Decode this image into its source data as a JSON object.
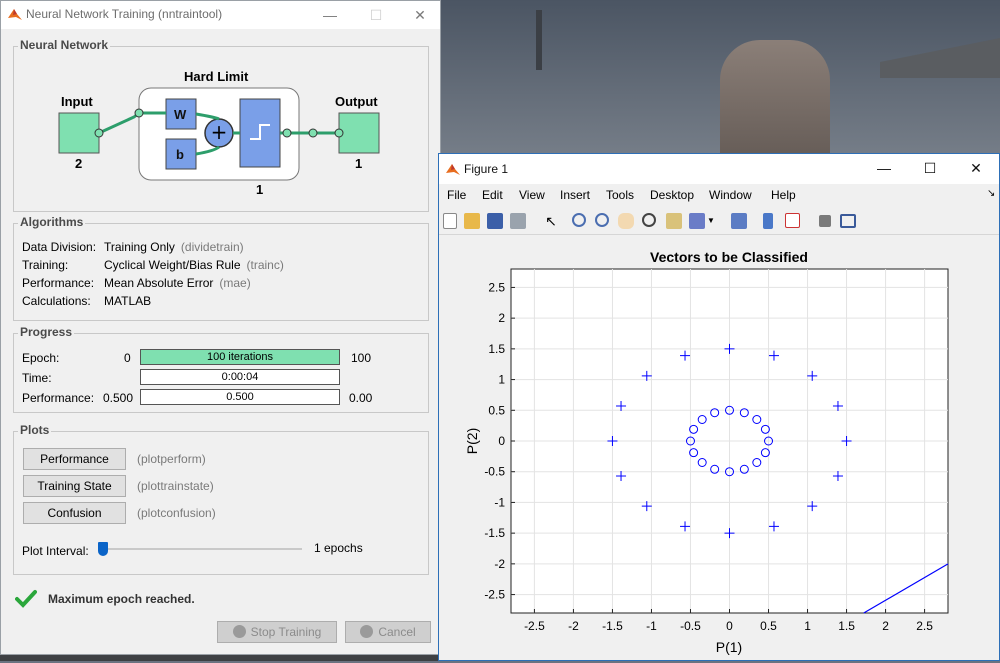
{
  "nntraintool": {
    "title": "Neural Network Training (nntraintool)",
    "network": {
      "group_title": "Neural Network",
      "layer_name": "Hard Limit",
      "input_label": "Input",
      "input_size": "2",
      "output_label": "Output",
      "output_size": "1",
      "weight_label": "W",
      "bias_label": "b",
      "layer_size": "1"
    },
    "algorithms": {
      "group_title": "Algorithms",
      "rows": [
        {
          "key": "Data Division:",
          "value": "Training Only",
          "code": "(dividetrain)"
        },
        {
          "key": "Training:",
          "value": "Cyclical Weight/Bias Rule",
          "code": "(trainc)"
        },
        {
          "key": "Performance:",
          "value": "Mean Absolute Error",
          "code": "(mae)"
        },
        {
          "key": "Calculations:",
          "value": "MATLAB",
          "code": ""
        }
      ]
    },
    "progress": {
      "group_title": "Progress",
      "epoch": {
        "label": "Epoch:",
        "min": "0",
        "text": "100 iterations",
        "max": "100",
        "fill": 1.0
      },
      "time": {
        "label": "Time:",
        "text": "0:00:04"
      },
      "performance": {
        "label": "Performance:",
        "min": "0.500",
        "text": "0.500",
        "max": "0.00"
      }
    },
    "plots": {
      "group_title": "Plots",
      "buttons": [
        {
          "label": "Performance",
          "fn": "(plotperform)"
        },
        {
          "label": "Training State",
          "fn": "(plottrainstate)"
        },
        {
          "label": "Confusion",
          "fn": "(plotconfusion)"
        }
      ],
      "interval_label": "Plot Interval:",
      "interval_value": "1 epochs"
    },
    "status": "Maximum epoch reached.",
    "stop_label": "Stop Training",
    "cancel_label": "Cancel"
  },
  "figure": {
    "title": "Figure 1",
    "menu": [
      "File",
      "Edit",
      "View",
      "Insert",
      "Tools",
      "Desktop",
      "Window",
      "Help"
    ]
  },
  "chart_data": {
    "type": "scatter",
    "title": "Vectors to be Classified",
    "xlabel": "P(1)",
    "ylabel": "P(2)",
    "xlim": [
      -2.8,
      2.8
    ],
    "ylim": [
      -2.8,
      2.8
    ],
    "xticks": [
      "-2.5",
      "-2",
      "-1.5",
      "-1",
      "-0.5",
      "0",
      "0.5",
      "1",
      "1.5",
      "2",
      "2.5"
    ],
    "yticks": [
      "2.5",
      "2",
      "1.5",
      "1",
      "0.5",
      "0",
      "-0.5",
      "-1",
      "-1.5",
      "-2",
      "-2.5"
    ],
    "grid": true,
    "series": [
      {
        "marker": "+",
        "color": "#0000ff",
        "x": [
          1.5,
          1.39,
          1.06,
          0.57,
          0.0,
          -0.57,
          -1.06,
          -1.39,
          -1.5,
          -1.39,
          -1.06,
          -0.57,
          0.0,
          0.57,
          1.06,
          1.39
        ],
        "y": [
          0.0,
          0.57,
          1.06,
          1.39,
          1.5,
          1.39,
          1.06,
          0.57,
          0.0,
          -0.57,
          -1.06,
          -1.39,
          -1.5,
          -1.39,
          -1.06,
          -0.57
        ]
      },
      {
        "marker": "o",
        "color": "#0000ff",
        "x": [
          0.5,
          0.46,
          0.35,
          0.19,
          0.0,
          -0.19,
          -0.35,
          -0.46,
          -0.5,
          -0.46,
          -0.35,
          -0.19,
          0.0,
          0.19,
          0.35,
          0.46
        ],
        "y": [
          0.0,
          0.19,
          0.35,
          0.46,
          0.5,
          0.46,
          0.35,
          0.19,
          0.0,
          -0.19,
          -0.35,
          -0.46,
          -0.5,
          -0.46,
          -0.35,
          -0.19
        ]
      }
    ],
    "lines": [
      {
        "color": "#0000ff",
        "x": [
          1.72,
          2.8
        ],
        "y": [
          -2.8,
          -2.0
        ]
      }
    ]
  }
}
